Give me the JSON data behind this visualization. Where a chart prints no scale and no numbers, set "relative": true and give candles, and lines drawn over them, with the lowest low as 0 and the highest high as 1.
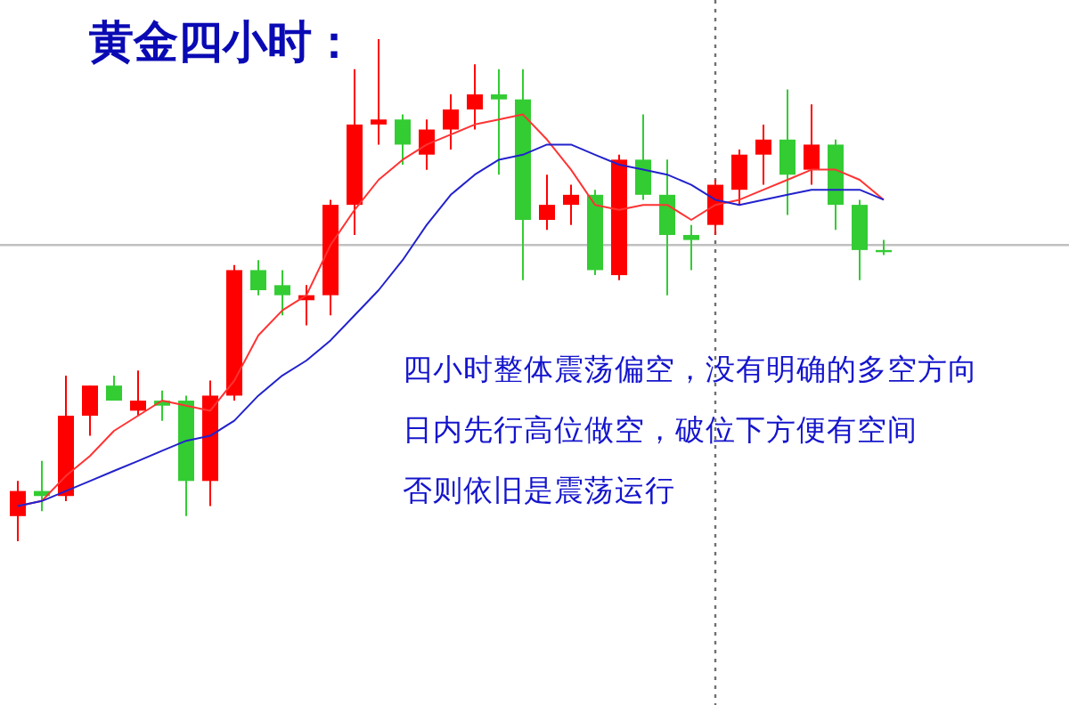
{
  "chart_data": {
    "type": "candlestick",
    "relative": true,
    "title": "黄金四小时：",
    "categories": [
      null,
      null,
      null,
      null,
      null,
      null,
      null,
      null,
      null,
      null,
      null,
      null,
      null,
      null,
      null,
      null,
      null,
      null,
      null,
      null,
      null,
      null,
      null,
      null,
      null,
      null,
      null,
      null,
      null,
      null,
      null,
      null,
      null,
      null,
      null,
      null,
      null
    ],
    "ohlc": [
      [
        0.05,
        0.12,
        0,
        0.1
      ],
      [
        0.1,
        0.16,
        0.06,
        0.09
      ],
      [
        0.09,
        0.33,
        0.08,
        0.25
      ],
      [
        0.25,
        0.31,
        0.21,
        0.31
      ],
      [
        0.31,
        0.33,
        0.28,
        0.28
      ],
      [
        0.26,
        0.34,
        0.25,
        0.28
      ],
      [
        0.28,
        0.3,
        0.24,
        0.27
      ],
      [
        0.28,
        0.29,
        0.05,
        0.12
      ],
      [
        0.12,
        0.32,
        0.07,
        0.29
      ],
      [
        0.29,
        0.55,
        0.28,
        0.54
      ],
      [
        0.54,
        0.56,
        0.49,
        0.5
      ],
      [
        0.51,
        0.54,
        0.45,
        0.49
      ],
      [
        0.48,
        0.51,
        0.43,
        0.49
      ],
      [
        0.49,
        0.68,
        0.45,
        0.67
      ],
      [
        0.67,
        0.94,
        0.61,
        0.83
      ],
      [
        0.83,
        1,
        0.79,
        0.84
      ],
      [
        0.84,
        0.85,
        0.75,
        0.79
      ],
      [
        0.77,
        0.84,
        0.74,
        0.82
      ],
      [
        0.82,
        0.89,
        0.78,
        0.86
      ],
      [
        0.86,
        0.95,
        0.82,
        0.89
      ],
      [
        0.89,
        0.94,
        0.73,
        0.88
      ],
      [
        0.88,
        0.94,
        0.52,
        0.64
      ],
      [
        0.64,
        0.73,
        0.62,
        0.67
      ],
      [
        0.67,
        0.71,
        0.63,
        0.69
      ],
      [
        0.69,
        0.7,
        0.53,
        0.54
      ],
      [
        0.53,
        0.77,
        0.52,
        0.76
      ],
      [
        0.76,
        0.85,
        0.68,
        0.69
      ],
      [
        0.69,
        0.76,
        0.49,
        0.61
      ],
      [
        0.61,
        0.63,
        0.54,
        0.6
      ],
      [
        0.63,
        0.72,
        0.61,
        0.71
      ],
      [
        0.7,
        0.78,
        0.67,
        0.77
      ],
      [
        0.77,
        0.83,
        0.71,
        0.8
      ],
      [
        0.8,
        0.9,
        0.65,
        0.73
      ],
      [
        0.74,
        0.87,
        0.71,
        0.79
      ],
      [
        0.79,
        0.8,
        0.62,
        0.67
      ],
      [
        0.67,
        0.68,
        0.52,
        0.58
      ],
      [
        0.58,
        0.6,
        0.57,
        0.58
      ]
    ],
    "colors": [
      "#ff0000",
      "#33cc33",
      "#ff0000",
      "#ff0000",
      "#33cc33",
      "#ff0000",
      "#33cc33",
      "#33cc33",
      "#ff0000",
      "#ff0000",
      "#33cc33",
      "#33cc33",
      "#ff0000",
      "#ff0000",
      "#ff0000",
      "#ff0000",
      "#33cc33",
      "#ff0000",
      "#ff0000",
      "#ff0000",
      "#33cc33",
      "#33cc33",
      "#ff0000",
      "#ff0000",
      "#33cc33",
      "#ff0000",
      "#33cc33",
      "#33cc33",
      "#33cc33",
      "#ff0000",
      "#ff0000",
      "#ff0000",
      "#33cc33",
      "#ff0000",
      "#33cc33",
      "#33cc33",
      "#33cc33"
    ],
    "series": [
      {
        "type": "line",
        "color": "#ff3333",
        "values": [
          0.07,
          0.08,
          0.13,
          0.17,
          0.22,
          0.25,
          0.28,
          0.27,
          0.26,
          0.32,
          0.41,
          0.46,
          0.49,
          0.59,
          0.66,
          0.72,
          0.76,
          0.79,
          0.81,
          0.83,
          0.84,
          0.85,
          0.8,
          0.74,
          0.67,
          0.66,
          0.67,
          0.67,
          0.64,
          0.67,
          0.68,
          0.7,
          0.72,
          0.74,
          0.74,
          0.72,
          0.68
        ]
      },
      {
        "type": "line",
        "color": "#2222cc",
        "values": [
          0.07,
          0.08,
          0.1,
          0.12,
          0.14,
          0.16,
          0.18,
          0.2,
          0.21,
          0.24,
          0.29,
          0.33,
          0.36,
          0.4,
          0.45,
          0.5,
          0.56,
          0.63,
          0.69,
          0.73,
          0.76,
          0.77,
          0.79,
          0.79,
          0.77,
          0.75,
          0.74,
          0.73,
          0.71,
          0.68,
          0.67,
          0.68,
          0.69,
          0.7,
          0.7,
          0.7,
          0.68
        ]
      }
    ],
    "ref_lines": [
      {
        "axis": "y",
        "value": 0.59,
        "color": "#c0c0c0",
        "line_style": "solid"
      }
    ],
    "annotations": [
      "四小时整体震荡偏空，没有明确的多空方向",
      "日内先行高位做空，破位下方便有空间",
      "否则依旧是震荡运行"
    ]
  }
}
